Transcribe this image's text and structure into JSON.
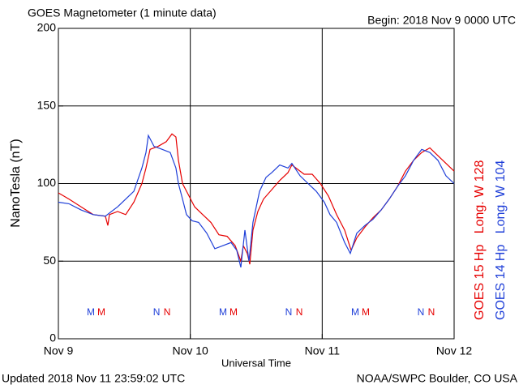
{
  "chart_data": {
    "type": "line",
    "title": "GOES Magnetometer (1 minute data)",
    "subtitle": "Begin:  2018 Nov 9 0000 UTC",
    "ylabel": "NanoTesla (nT)",
    "xlabel": "Universal Time",
    "footer_left": "Updated 2018 Nov 11 23:59:02 UTC",
    "footer_right": "NOAA/SWPC Boulder, CO USA",
    "xlim": [
      0,
      3
    ],
    "xticks": [
      {
        "value": 0,
        "label": "Nov 9"
      },
      {
        "value": 1,
        "label": "Nov 10"
      },
      {
        "value": 2,
        "label": "Nov 11"
      },
      {
        "value": 3,
        "label": "Nov 12"
      }
    ],
    "ylim": [
      0,
      200
    ],
    "yticks": [
      0,
      50,
      100,
      150,
      200
    ],
    "grid": true,
    "series": [
      {
        "name": "GOES 15 Hp   Long. W 128",
        "color": "#e60000",
        "x": [
          0,
          0.08,
          0.172,
          0.264,
          0.356,
          0.375,
          0.387,
          0.449,
          0.51,
          0.572,
          0.633,
          0.664,
          0.695,
          0.756,
          0.818,
          0.861,
          0.891,
          0.91,
          0.941,
          0.984,
          1.033,
          1.094,
          1.156,
          1.217,
          1.279,
          1.34,
          1.383,
          1.402,
          1.432,
          1.451,
          1.475,
          1.512,
          1.555,
          1.617,
          1.678,
          1.74,
          1.77,
          1.801,
          1.863,
          1.924,
          1.986,
          2.047,
          2.109,
          2.17,
          2.219,
          2.262,
          2.324,
          2.385,
          2.447,
          2.508,
          2.57,
          2.631,
          2.693,
          2.754,
          2.816,
          2.877,
          2.938,
          3.0
        ],
        "values": [
          94,
          90,
          85,
          80,
          79,
          73,
          80,
          82,
          80,
          88,
          100,
          110,
          122,
          124,
          127,
          132,
          130,
          115,
          100,
          93,
          85,
          80,
          75,
          67,
          66,
          60,
          50,
          60,
          55,
          48,
          70,
          82,
          90,
          96,
          102,
          107,
          112,
          110,
          106,
          106,
          100,
          92,
          80,
          70,
          57,
          65,
          72,
          78,
          83,
          90,
          98,
          108,
          115,
          120,
          123,
          118,
          113,
          108
        ]
      },
      {
        "name": "GOES 14 Hp   Long. W 104",
        "color": "#1f3fd8",
        "x": [
          0,
          0.08,
          0.172,
          0.264,
          0.356,
          0.449,
          0.51,
          0.572,
          0.633,
          0.664,
          0.682,
          0.725,
          0.787,
          0.848,
          0.891,
          0.91,
          0.941,
          0.971,
          1.014,
          1.063,
          1.125,
          1.186,
          1.248,
          1.309,
          1.352,
          1.383,
          1.414,
          1.445,
          1.475,
          1.525,
          1.574,
          1.617,
          1.678,
          1.74,
          1.77,
          1.832,
          1.893,
          1.955,
          2.016,
          2.059,
          2.109,
          2.17,
          2.213,
          2.262,
          2.324,
          2.385,
          2.447,
          2.508,
          2.57,
          2.631,
          2.693,
          2.754,
          2.816,
          2.877,
          2.938,
          3.0
        ],
        "values": [
          88,
          87,
          83,
          80,
          79,
          85,
          90,
          95,
          110,
          120,
          131,
          124,
          122,
          120,
          110,
          100,
          90,
          80,
          76,
          75,
          68,
          58,
          60,
          62,
          57,
          46,
          70,
          50,
          75,
          95,
          104,
          107,
          112,
          110,
          113,
          105,
          100,
          95,
          88,
          80,
          75,
          62,
          55,
          68,
          73,
          77,
          83,
          90,
          98,
          105,
          115,
          122,
          120,
          115,
          105,
          100
        ]
      }
    ],
    "annotations": [
      {
        "text": "M",
        "x": 0.246,
        "color": "#1f3fd8"
      },
      {
        "text": "M",
        "x": 0.326,
        "color": "#e60000"
      },
      {
        "text": "N",
        "x": 0.744,
        "color": "#1f3fd8"
      },
      {
        "text": "N",
        "x": 0.824,
        "color": "#e60000"
      },
      {
        "text": "M",
        "x": 1.248,
        "color": "#1f3fd8"
      },
      {
        "text": "M",
        "x": 1.328,
        "color": "#e60000"
      },
      {
        "text": "N",
        "x": 1.746,
        "color": "#1f3fd8"
      },
      {
        "text": "N",
        "x": 1.826,
        "color": "#e60000"
      },
      {
        "text": "M",
        "x": 2.25,
        "color": "#1f3fd8"
      },
      {
        "text": "M",
        "x": 2.33,
        "color": "#e60000"
      },
      {
        "text": "N",
        "x": 2.748,
        "color": "#1f3fd8"
      },
      {
        "text": "N",
        "x": 2.828,
        "color": "#e60000"
      }
    ]
  }
}
